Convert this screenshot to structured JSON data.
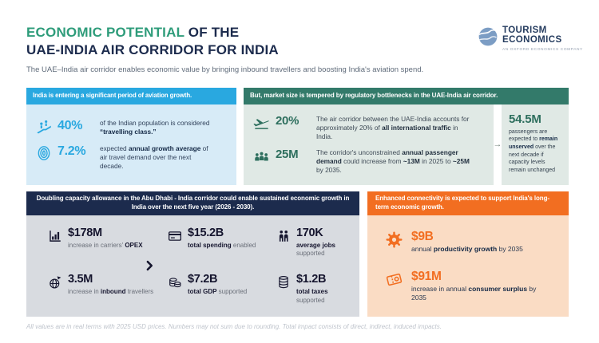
{
  "header": {
    "title_highlight": "ECONOMIC POTENTIAL",
    "title_line1_rest": " OF THE",
    "title_line2": "UAE-INDIA AIR CORRIDOR FOR INDIA",
    "subtitle": "The UAE–India air corridor enables economic value by bringing inbound travellers and boosting India's aviation spend.",
    "logo": {
      "icon": "globe-icon",
      "name_line1": "TOURISM",
      "name_line2": "ECONOMICS",
      "tagline": "AN OXFORD ECONOMICS COMPANY"
    }
  },
  "colors": {
    "title_green": "#2E9C7A",
    "navy": "#1C2B4D",
    "cyan": "#29A8E0",
    "green": "#337A6A",
    "orange": "#F26E21"
  },
  "panels": {
    "aviation_growth": {
      "header": "India is entering a significant period of aviation growth.",
      "accent_color": "#29A8E0",
      "stats": [
        {
          "value": "40%",
          "icon": "escalator-travellers-icon",
          "desc": [
            {
              "t": "of the Indian population is considered "
            },
            {
              "t": "“travelling class.”",
              "b": true
            }
          ]
        },
        {
          "value": "7.2%",
          "icon": "fingerprint-growth-icon",
          "desc": [
            {
              "t": "expected "
            },
            {
              "t": "annual growth average",
              "b": true
            },
            {
              "t": " of air travel demand over the next decade."
            }
          ]
        }
      ]
    },
    "market_size": {
      "header": "But, market size is tempered by regulatory bottlenecks in the UAE-India air corridor.",
      "accent_color": "#337A6A",
      "arrow": "→",
      "stats": [
        {
          "value": "20%",
          "icon": "airplane-takeoff-icon",
          "desc": [
            {
              "t": "The air corridor between the UAE-India accounts for approximately 20% of "
            },
            {
              "t": "all international traffic",
              "b": true
            },
            {
              "t": " in India."
            }
          ]
        },
        {
          "value": "25M",
          "icon": "crowd-icon",
          "desc": [
            {
              "t": "The corridor's unconstrained "
            },
            {
              "t": "annual passenger demand",
              "b": true
            },
            {
              "t": " could increase from "
            },
            {
              "t": "~13M",
              "b": true
            },
            {
              "t": " in 2025 to "
            },
            {
              "t": "~25M",
              "b": true
            },
            {
              "t": " by 2035."
            }
          ]
        }
      ],
      "highlight": {
        "value": "54.5M",
        "desc": [
          {
            "t": "passengers are expected to "
          },
          {
            "t": "remain unserved",
            "b": true
          },
          {
            "t": " over the next decade if capacity levels remain unchanged"
          }
        ]
      }
    },
    "capacity_growth": {
      "header": "Doubling capacity allowance in the Abu Dhabi - India corridor could enable sustained economic growth in India over the next five year (2026 - 2030).",
      "accent_color": "#1C2B4D",
      "separator_icon": "chevron-right-icon",
      "stats": [
        {
          "value": "$178M",
          "icon": "bar-chart-icon",
          "desc": [
            {
              "t": "increase in carriers' "
            },
            {
              "t": "OPEX",
              "b": true
            }
          ]
        },
        {
          "value": "$15.2B",
          "icon": "credit-card-icon",
          "desc": [
            {
              "t": "total spending",
              "b": true
            },
            {
              "t": " enabled"
            }
          ]
        },
        {
          "value": "170K",
          "icon": "jobs-people-icon",
          "desc": [
            {
              "t": "average jobs",
              "b": true
            },
            {
              "t": " supported"
            }
          ]
        },
        {
          "value": "3.5M",
          "icon": "globe-plane-icon",
          "desc": [
            {
              "t": "increase in "
            },
            {
              "t": "inbound",
              "b": true
            },
            {
              "t": " travellers"
            }
          ]
        },
        {
          "value": "$7.2B",
          "icon": "coins-icon",
          "desc": [
            {
              "t": "total GDP",
              "b": true
            },
            {
              "t": " supported"
            }
          ]
        },
        {
          "value": "$1.2B",
          "icon": "coin-stack-icon",
          "desc": [
            {
              "t": "total taxes",
              "b": true
            },
            {
              "t": " supported"
            }
          ]
        }
      ]
    },
    "connectivity": {
      "header": "Enhanced connectivity is expected to support India's long-term economic growth.",
      "accent_color": "#F26E21",
      "stats": [
        {
          "value": "$9B",
          "icon": "gear-icon",
          "desc": [
            {
              "t": "annual "
            },
            {
              "t": "productivity growth",
              "b": true
            },
            {
              "t": " by 2035"
            }
          ]
        },
        {
          "value": "$91M",
          "icon": "ticket-icon",
          "desc": [
            {
              "t": "increase in annual "
            },
            {
              "t": "consumer surplus",
              "b": true
            },
            {
              "t": " by 2035"
            }
          ]
        }
      ]
    }
  },
  "footer": {
    "note": "All values are in real terms with 2025 USD prices. Numbers may not sum due to rounding. Total impact consists of direct, indirect, induced impacts."
  }
}
